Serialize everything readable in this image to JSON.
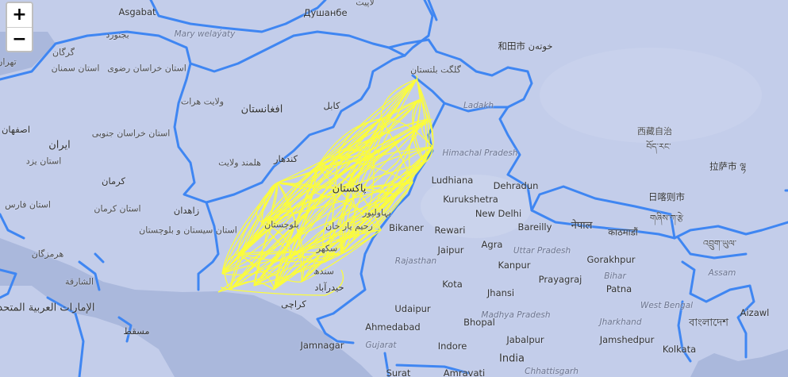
{
  "zoom": {
    "in_label": "+",
    "out_label": "−"
  },
  "colors": {
    "water": "#aab8dc",
    "land": "#c3cdea",
    "border": "#3f86f2",
    "route": "#ffff33"
  },
  "labels": [
    {
      "id": "ashgabat",
      "text": "Asgabat",
      "cls": "city"
    },
    {
      "id": "dushanbe",
      "text": "Душанбе",
      "cls": "city"
    },
    {
      "id": "dushanbe_ar",
      "text": "لاپیت",
      "cls": ""
    },
    {
      "id": "bojnurd",
      "text": "بجنورد",
      "cls": ""
    },
    {
      "id": "mary",
      "text": "Mary welaýaty",
      "cls": "region"
    },
    {
      "id": "gorgan",
      "text": "گرگان",
      "cls": ""
    },
    {
      "id": "tehran",
      "text": "تهران",
      "cls": ""
    },
    {
      "id": "semnan",
      "text": "استان سمنان",
      "cls": ""
    },
    {
      "id": "khorasan_razavi",
      "text": "استان خراسان رضوی",
      "cls": ""
    },
    {
      "id": "herat",
      "text": "ولایت هرات",
      "cls": ""
    },
    {
      "id": "afghanistan",
      "text": "افغانستان",
      "cls": "big"
    },
    {
      "id": "kabul",
      "text": "کابل",
      "cls": "city"
    },
    {
      "id": "isfahan",
      "text": "اصفهان",
      "cls": "city"
    },
    {
      "id": "iran",
      "text": "ایران",
      "cls": "big"
    },
    {
      "id": "south_khorasan",
      "text": "استان خراسان جنوبی",
      "cls": ""
    },
    {
      "id": "yazd",
      "text": "استان یزد",
      "cls": ""
    },
    {
      "id": "kerman",
      "text": "کرمان",
      "cls": "city"
    },
    {
      "id": "kerman_prov",
      "text": "استان کرمان",
      "cls": ""
    },
    {
      "id": "fars",
      "text": "استان فارس",
      "cls": ""
    },
    {
      "id": "helmand",
      "text": "هلمند ولایت",
      "cls": ""
    },
    {
      "id": "kandahar",
      "text": "کندهار",
      "cls": "city"
    },
    {
      "id": "zahedan",
      "text": "زاهدان",
      "cls": "city"
    },
    {
      "id": "sistan",
      "text": "استان سیستان و بلوچستان",
      "cls": ""
    },
    {
      "id": "balochistan",
      "text": "بلوچستان",
      "cls": ""
    },
    {
      "id": "hormozgan",
      "text": "هرمزگان",
      "cls": ""
    },
    {
      "id": "sharjah",
      "text": "الشارقة",
      "cls": ""
    },
    {
      "id": "uae",
      "text": "الإمارات العربية المتحدة",
      "cls": "big"
    },
    {
      "id": "muscat",
      "text": "مسقط",
      "cls": "city"
    },
    {
      "id": "pakistan",
      "text": "پاکستان",
      "cls": "big"
    },
    {
      "id": "bahawalpur",
      "text": "بہاولپور",
      "cls": ""
    },
    {
      "id": "rahim_yar_khan",
      "text": "رحیم یار خان",
      "cls": ""
    },
    {
      "id": "sukkur",
      "text": "سکھر",
      "cls": ""
    },
    {
      "id": "sindh",
      "text": "سندھ",
      "cls": ""
    },
    {
      "id": "hyderabad",
      "text": "حیدرآباد",
      "cls": "city"
    },
    {
      "id": "karachi",
      "text": "کراچی",
      "cls": "city"
    },
    {
      "id": "gb",
      "text": "گلگت بلتستان",
      "cls": ""
    },
    {
      "id": "hetian",
      "text": "和田市 خوتەن",
      "cls": "city"
    },
    {
      "id": "ladakh",
      "text": "Ladakh",
      "cls": "region"
    },
    {
      "id": "xizang",
      "text": "西藏自治",
      "cls": ""
    },
    {
      "id": "xizang_tib",
      "text": "བོད་རང་",
      "cls": ""
    },
    {
      "id": "lhasa",
      "text": "拉萨市 ལྷ",
      "cls": "city"
    },
    {
      "id": "shigatse",
      "text": "日喀则市",
      "cls": "city"
    },
    {
      "id": "shigatse_tib",
      "text": "གཞིས་ཀ་རྩེ",
      "cls": ""
    },
    {
      "id": "himachal",
      "text": "Himachal Pradesh",
      "cls": "region"
    },
    {
      "id": "ludhiana",
      "text": "Ludhiana",
      "cls": "city"
    },
    {
      "id": "dehradun",
      "text": "Dehradun",
      "cls": "city"
    },
    {
      "id": "kurukshetra",
      "text": "Kurukshetra",
      "cls": "city"
    },
    {
      "id": "newdelhi",
      "text": "New Delhi",
      "cls": "city"
    },
    {
      "id": "bikaner",
      "text": "Bikaner",
      "cls": "city"
    },
    {
      "id": "rewari",
      "text": "Rewari",
      "cls": "city"
    },
    {
      "id": "bareilly",
      "text": "Bareilly",
      "cls": "city"
    },
    {
      "id": "nepal",
      "text": "नेपाल",
      "cls": "big"
    },
    {
      "id": "kathmandu",
      "text": "काठमाडौं",
      "cls": "city"
    },
    {
      "id": "jaipur",
      "text": "Jaipur",
      "cls": "city"
    },
    {
      "id": "agra",
      "text": "Agra",
      "cls": "city"
    },
    {
      "id": "rajasthan",
      "text": "Rajasthan",
      "cls": "region"
    },
    {
      "id": "uttar_pradesh",
      "text": "Uttar Pradesh",
      "cls": "region"
    },
    {
      "id": "kanpur",
      "text": "Kanpur",
      "cls": "city"
    },
    {
      "id": "gorakhpur",
      "text": "Gorakhpur",
      "cls": "city"
    },
    {
      "id": "bhutan",
      "text": "འབྲུག་ཡུལ་",
      "cls": ""
    },
    {
      "id": "assam",
      "text": "Assam",
      "cls": "region"
    },
    {
      "id": "kota",
      "text": "Kota",
      "cls": "city"
    },
    {
      "id": "prayagraj",
      "text": "Prayagraj",
      "cls": "city"
    },
    {
      "id": "patna",
      "text": "Patna",
      "cls": "city"
    },
    {
      "id": "bihar",
      "text": "Bihar",
      "cls": "region"
    },
    {
      "id": "jhansi",
      "text": "Jhansi",
      "cls": "city"
    },
    {
      "id": "udaipur",
      "text": "Udaipur",
      "cls": "city"
    },
    {
      "id": "madhya",
      "text": "Madhya Pradesh",
      "cls": "region"
    },
    {
      "id": "west_bengal",
      "text": "West Bengal",
      "cls": "region"
    },
    {
      "id": "ahmedabad",
      "text": "Ahmedabad",
      "cls": "city"
    },
    {
      "id": "bhopal",
      "text": "Bhopal",
      "cls": "city"
    },
    {
      "id": "jharkhand",
      "text": "Jharkhand",
      "cls": "region"
    },
    {
      "id": "bangladesh",
      "text": "বাংলাদেশ",
      "cls": "big"
    },
    {
      "id": "aizawl",
      "text": "Aizawl",
      "cls": "city"
    },
    {
      "id": "jamnagar",
      "text": "Jamnagar",
      "cls": "city"
    },
    {
      "id": "gujarat",
      "text": "Gujarat",
      "cls": "region"
    },
    {
      "id": "indore",
      "text": "Indore",
      "cls": "city"
    },
    {
      "id": "jabalpur",
      "text": "Jabalpur",
      "cls": "city"
    },
    {
      "id": "jamshedpur",
      "text": "Jamshedpur",
      "cls": "city"
    },
    {
      "id": "kolkata",
      "text": "Kolkata",
      "cls": "city"
    },
    {
      "id": "india",
      "text": "India",
      "cls": "big"
    },
    {
      "id": "surat",
      "text": "Surat",
      "cls": "city"
    },
    {
      "id": "amravati",
      "text": "Amravati",
      "cls": "city"
    },
    {
      "id": "chhattisgarh",
      "text": "Chhattisgarh",
      "cls": "region"
    }
  ]
}
